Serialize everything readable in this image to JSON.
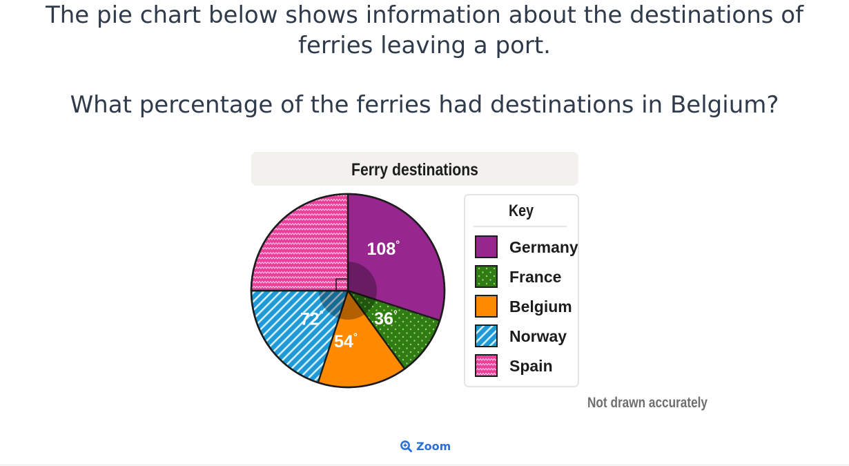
{
  "question": {
    "intro": "The pie chart below shows information about the destinations of ferries leaving a port.",
    "prompt": "What percentage of the ferries had destinations in Belgium?"
  },
  "zoom": {
    "label": "Zoom",
    "icon": "zoom-in-icon"
  },
  "chart_data": {
    "type": "pie",
    "title": "Ferry destinations",
    "legend_title": "Key",
    "legend_position": "right",
    "note": "Not drawn accurately",
    "degree_symbol": "°",
    "slices": [
      {
        "label": "Germany",
        "angle": 108,
        "angle_label": "108",
        "color": "#97278f",
        "pattern": "solid"
      },
      {
        "label": "France",
        "angle": 36,
        "angle_label": "36",
        "color": "#2f7d12",
        "pattern": "dots"
      },
      {
        "label": "Belgium",
        "angle": 54,
        "angle_label": "54",
        "color": "#ff8a00",
        "pattern": "solid"
      },
      {
        "label": "Norway",
        "angle": 72,
        "angle_label": "72",
        "color": "#1f9ad6",
        "pattern": "diagonal-stripes"
      },
      {
        "label": "Spain",
        "angle": 90,
        "angle_label": "",
        "color": "#ea3f9a",
        "pattern": "zigzag"
      }
    ]
  }
}
